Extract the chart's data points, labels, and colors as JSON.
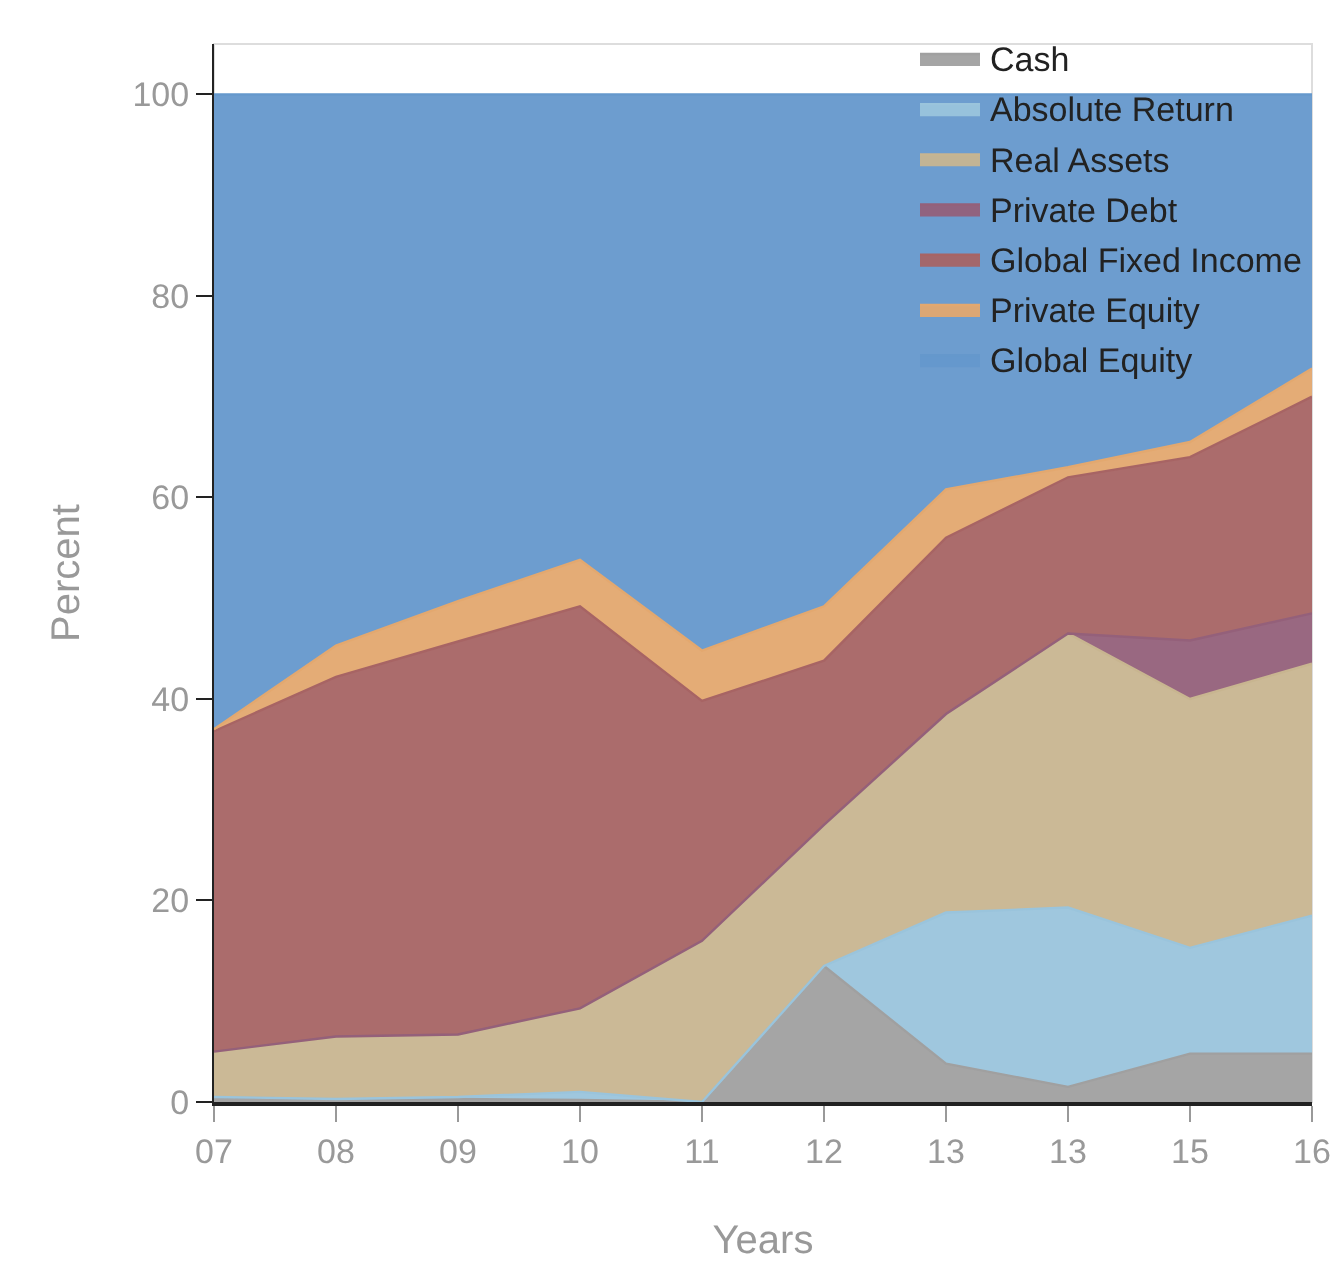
{
  "chart_data": {
    "type": "area",
    "stacked": true,
    "xlabel": "Years",
    "ylabel": "Percent",
    "categories": [
      "07",
      "08",
      "09",
      "10",
      "11",
      "12",
      "13",
      "13",
      "15",
      "16"
    ],
    "series": [
      {
        "name": "Cash",
        "color": "#a0a0a0",
        "values": [
          0.5,
          0.3,
          0.3,
          0.2,
          0,
          13.5,
          3.8,
          1.5,
          4.8,
          4.8
        ]
      },
      {
        "name": "Absolute Return",
        "color": "#9ac4dc",
        "values": [
          0,
          0,
          0.2,
          0.8,
          0,
          0,
          15,
          17.8,
          10.5,
          13.7
        ]
      },
      {
        "name": "Real Assets",
        "color": "#c8b590",
        "values": [
          4.5,
          6.2,
          6.2,
          8.3,
          16,
          14,
          19.7,
          27.2,
          24.7,
          25
        ]
      },
      {
        "name": "Private Debt",
        "color": "#94607a",
        "values": [
          0,
          0,
          0,
          0,
          0,
          0,
          0,
          0,
          5.8,
          5
        ]
      },
      {
        "name": "Global Fixed Income",
        "color": "#a76464",
        "values": [
          31.8,
          35.7,
          39,
          39.9,
          23.8,
          16.3,
          17.5,
          15.5,
          18.2,
          21.5
        ]
      },
      {
        "name": "Private Equity",
        "color": "#e3a86f",
        "values": [
          0.2,
          3.1,
          4,
          4.6,
          5,
          5.4,
          4.8,
          1,
          1.5,
          2.8
        ]
      },
      {
        "name": "Global Equity",
        "color": "#6598cc",
        "values": [
          63,
          54.7,
          50.3,
          46.2,
          55.2,
          50.8,
          39.2,
          37,
          34.5,
          27.2
        ]
      }
    ],
    "ylim": [
      0,
      105
    ],
    "yticks": [
      0,
      20,
      40,
      60,
      80,
      100
    ],
    "grid": false,
    "legend": "top right"
  }
}
